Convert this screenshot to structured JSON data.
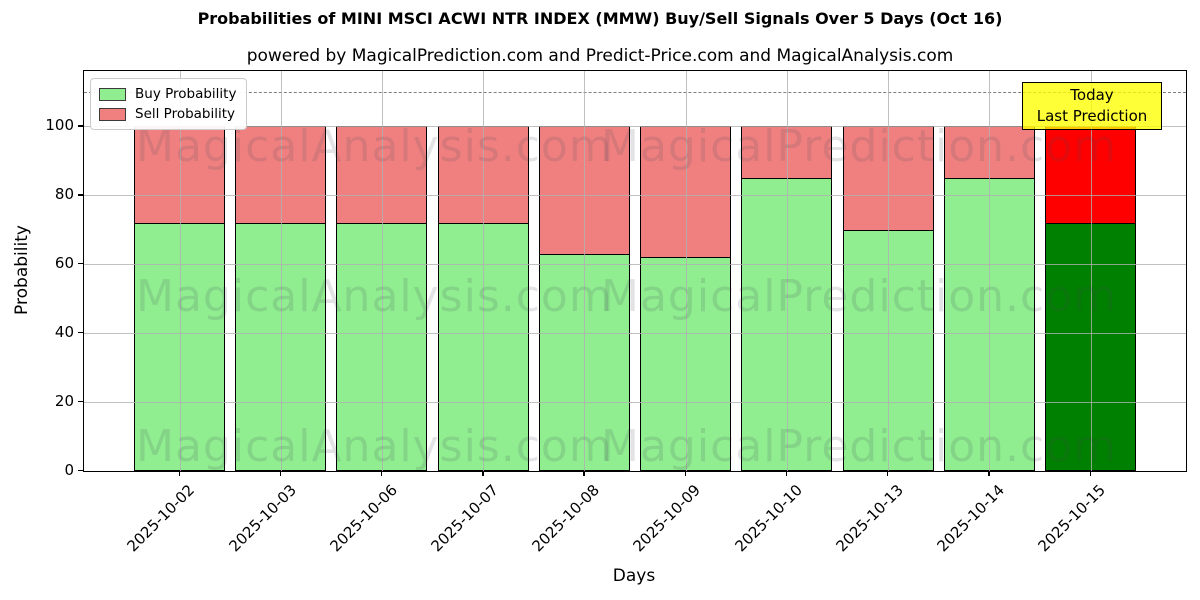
{
  "title": "Probabilities of MINI MSCI ACWI NTR INDEX (MMW) Buy/Sell Signals Over 5 Days (Oct 16)",
  "subtitle": "powered by MagicalPrediction.com and Predict-Price.com and MagicalAnalysis.com",
  "annotation": {
    "line1": "Today",
    "line2": "Last Prediction",
    "bg_color": "#ffff00"
  },
  "watermarks": [
    "MagicalAnalysis.com",
    "MagicalPrediction.com"
  ],
  "chart_data": {
    "type": "bar",
    "stacked": true,
    "title": "Probabilities of MINI MSCI ACWI NTR INDEX (MMW) Buy/Sell Signals Over 5 Days (Oct 16)",
    "xlabel": "Days",
    "ylabel": "Probability",
    "categories": [
      "2025-10-02",
      "2025-10-03",
      "2025-10-06",
      "2025-10-07",
      "2025-10-08",
      "2025-10-09",
      "2025-10-10",
      "2025-10-13",
      "2025-10-14",
      "2025-10-15"
    ],
    "series": [
      {
        "name": "Buy Probability",
        "color": "#90ee90",
        "values": [
          72,
          72,
          72,
          72,
          63,
          62,
          85,
          70,
          85,
          72
        ]
      },
      {
        "name": "Sell Probability",
        "color": "#f08080",
        "values": [
          28,
          28,
          28,
          28,
          37,
          38,
          15,
          30,
          15,
          28
        ]
      }
    ],
    "today_index": 9,
    "today_colors": {
      "buy": "#008000",
      "sell": "#ff0000"
    },
    "bar_edge_color": "#000000",
    "yticks": [
      0,
      20,
      40,
      60,
      80,
      100
    ],
    "ylim": [
      0,
      116
    ],
    "dashed_line_y": 110,
    "dashed_line_color": "#7f7f7f",
    "grid": true,
    "legend_position": "upper left",
    "background": "#ffffff"
  }
}
